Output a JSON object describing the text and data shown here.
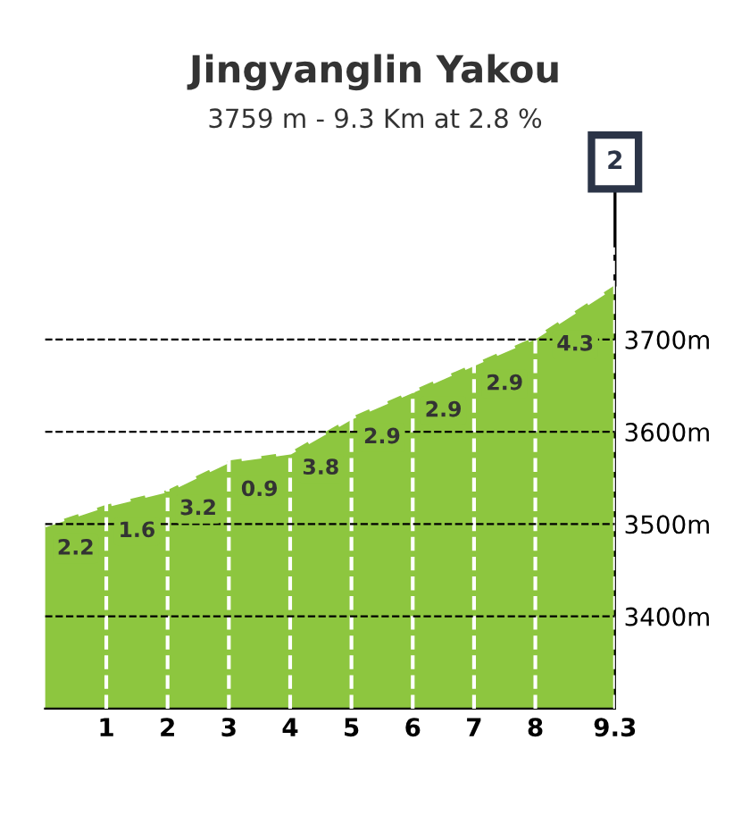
{
  "chart_data": {
    "type": "area",
    "title": "Jingyanglin Yakou",
    "subtitle": "3759 m - 9.3 Km at 2.8 %",
    "x": [
      0,
      1,
      2,
      3,
      4,
      5,
      6,
      7,
      8,
      9.3
    ],
    "series": [
      {
        "color": "#8dc63f",
        "values": [
          3499,
          3521,
          3537,
          3569,
          3578,
          3616,
          3645,
          3674,
          3703,
          3759
        ]
      }
    ],
    "xlim": [
      0,
      9.3
    ],
    "xticks": [
      1,
      2,
      3,
      4,
      5,
      6,
      7,
      8,
      9.3
    ],
    "ylim": [
      3300,
      3800
    ],
    "yticks": [
      {
        "value": 3400,
        "label": "3400m"
      },
      {
        "value": 3500,
        "label": "3500m"
      },
      {
        "value": 3600,
        "label": "3600m"
      },
      {
        "value": 3700,
        "label": "3700m"
      }
    ],
    "grid": true,
    "annotations": [
      {
        "text": "2.2",
        "x": 0.5,
        "y": 3510
      },
      {
        "text": "1.6",
        "x": 1.5,
        "y": 3529
      },
      {
        "text": "3.2",
        "x": 2.5,
        "y": 3553
      },
      {
        "text": "0.9",
        "x": 3.5,
        "y": 3573.5
      },
      {
        "text": "3.8",
        "x": 4.5,
        "y": 3597
      },
      {
        "text": "2.9",
        "x": 5.5,
        "y": 3630.5
      },
      {
        "text": "2.9",
        "x": 6.5,
        "y": 3659.5
      },
      {
        "text": "2.9",
        "x": 7.5,
        "y": 3688.5
      },
      {
        "text": "4.3",
        "x": 8.65,
        "y": 3731
      },
      {
        "text": "2",
        "x": 9.3,
        "y": 3759
      }
    ]
  }
}
